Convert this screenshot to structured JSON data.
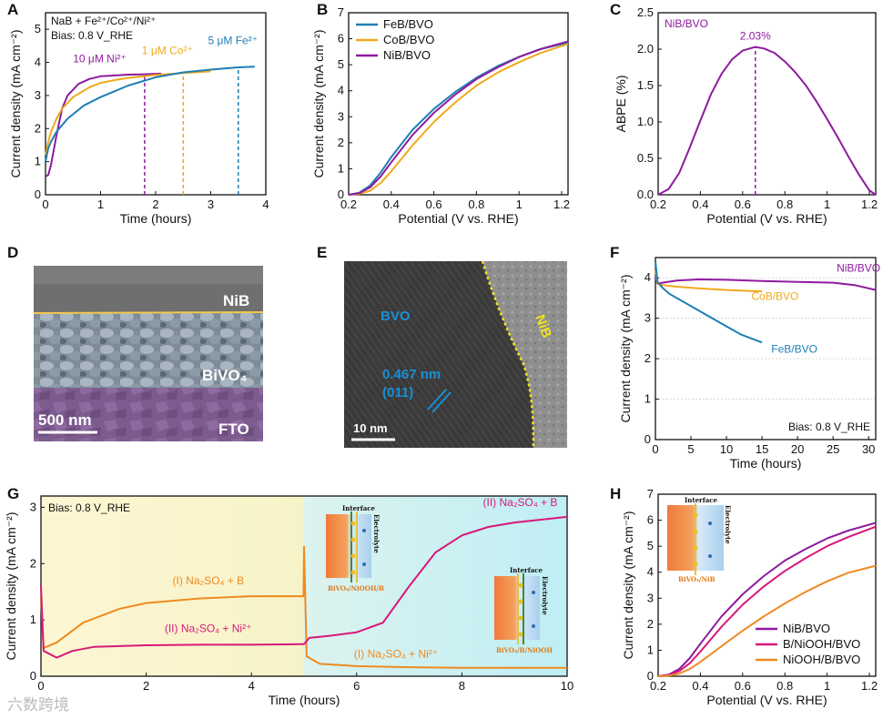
{
  "chart_data": [
    {
      "panel": "A",
      "type": "line",
      "xlabel": "Time (hours)",
      "ylabel": "Current density (mA cm⁻²)",
      "xlim": [
        0,
        4
      ],
      "ylim": [
        0,
        5.5
      ],
      "xticks": [
        0,
        1,
        2,
        3,
        4
      ],
      "yticks": [
        0,
        1,
        2,
        3,
        4,
        5
      ],
      "annotations": [
        "NaB + Fe²⁺/Co²⁺/Ni²⁺",
        "Bias: 0.8 V_RHE",
        "10 μM Ni²⁺",
        "1 μM Co²⁺",
        "5 μM Fe²⁺"
      ],
      "series": [
        {
          "name": "10 μM Ni²⁺",
          "color": "#8e1a9e",
          "x": [
            0,
            0.05,
            0.1,
            0.2,
            0.3,
            0.4,
            0.6,
            0.8,
            1.0,
            1.2,
            1.5,
            1.8,
            2.1
          ],
          "y": [
            0.55,
            0.6,
            0.9,
            1.8,
            2.6,
            3.0,
            3.35,
            3.5,
            3.58,
            3.6,
            3.63,
            3.64,
            3.66
          ],
          "marker_x": 1.8
        },
        {
          "name": "1 μM Co²⁺",
          "color": "#f0a91c",
          "x": [
            0,
            0.05,
            0.1,
            0.2,
            0.3,
            0.5,
            0.8,
            1.0,
            1.3,
            1.6,
            2.0,
            2.5,
            3.0
          ],
          "y": [
            1.2,
            1.6,
            1.9,
            2.3,
            2.6,
            2.95,
            3.25,
            3.38,
            3.48,
            3.55,
            3.62,
            3.68,
            3.73
          ],
          "marker_x": 2.5
        },
        {
          "name": "5 μM Fe²⁺",
          "color": "#1f7fb4",
          "x": [
            0,
            0.05,
            0.1,
            0.2,
            0.4,
            0.7,
            1.0,
            1.5,
            2.0,
            2.5,
            3.0,
            3.5,
            3.8
          ],
          "y": [
            1.0,
            1.4,
            1.6,
            1.9,
            2.3,
            2.7,
            2.95,
            3.3,
            3.55,
            3.7,
            3.78,
            3.85,
            3.87
          ],
          "marker_x": 3.5
        }
      ]
    },
    {
      "panel": "B",
      "type": "line",
      "xlabel": "Potential (V vs. RHE)",
      "ylabel": "Current density (mA cm⁻²)",
      "xlim": [
        0.2,
        1.23
      ],
      "ylim": [
        0,
        7
      ],
      "xticks": [
        0.2,
        0.4,
        0.6,
        0.8,
        1.0,
        1.2
      ],
      "yticks": [
        0,
        1,
        2,
        3,
        4,
        5,
        6,
        7
      ],
      "legend_position": "top-left",
      "series": [
        {
          "name": "FeB/BVO",
          "color": "#1f7fb4",
          "x": [
            0.2,
            0.25,
            0.3,
            0.35,
            0.4,
            0.5,
            0.6,
            0.7,
            0.8,
            0.9,
            1.0,
            1.1,
            1.23
          ],
          "y": [
            0,
            0.08,
            0.35,
            0.85,
            1.45,
            2.5,
            3.3,
            3.95,
            4.5,
            4.95,
            5.3,
            5.6,
            5.85
          ]
        },
        {
          "name": "CoB/BVO",
          "color": "#f0a91c",
          "x": [
            0.2,
            0.25,
            0.3,
            0.35,
            0.4,
            0.5,
            0.6,
            0.7,
            0.8,
            0.9,
            1.0,
            1.1,
            1.23
          ],
          "y": [
            0,
            0.03,
            0.15,
            0.45,
            0.9,
            1.9,
            2.8,
            3.55,
            4.2,
            4.7,
            5.1,
            5.45,
            5.8
          ]
        },
        {
          "name": "NiB/BVO",
          "color": "#8e1a9e",
          "x": [
            0.2,
            0.25,
            0.3,
            0.35,
            0.4,
            0.5,
            0.6,
            0.7,
            0.8,
            0.9,
            1.0,
            1.1,
            1.23
          ],
          "y": [
            0,
            0.06,
            0.28,
            0.7,
            1.25,
            2.3,
            3.15,
            3.85,
            4.45,
            4.9,
            5.3,
            5.6,
            5.9
          ]
        }
      ]
    },
    {
      "panel": "C",
      "type": "line",
      "xlabel": "Potential (V vs. RHE)",
      "ylabel": "ABPE (%)",
      "xlim": [
        0.2,
        1.23
      ],
      "ylim": [
        0,
        2.5
      ],
      "xticks": [
        0.2,
        0.4,
        0.6,
        0.8,
        1.0,
        1.2
      ],
      "yticks": [
        0.0,
        0.5,
        1.0,
        1.5,
        2.0,
        2.5
      ],
      "annotations": [
        "NiB/BVO",
        "2.03%"
      ],
      "series": [
        {
          "name": "NiB/BVO",
          "color": "#8e1a9e",
          "x": [
            0.2,
            0.25,
            0.3,
            0.35,
            0.4,
            0.45,
            0.5,
            0.55,
            0.6,
            0.66,
            0.7,
            0.75,
            0.8,
            0.85,
            0.9,
            0.95,
            1.0,
            1.05,
            1.1,
            1.15,
            1.2,
            1.23
          ],
          "y": [
            0,
            0.08,
            0.3,
            0.65,
            1.02,
            1.38,
            1.66,
            1.86,
            1.98,
            2.03,
            2.01,
            1.95,
            1.83,
            1.68,
            1.5,
            1.28,
            1.04,
            0.79,
            0.53,
            0.28,
            0.06,
            0
          ],
          "peak_x": 0.66
        }
      ]
    },
    {
      "panel": "F",
      "type": "line",
      "xlabel": "Time (hours)",
      "ylabel": "Current density (mA cm⁻²)",
      "xlim": [
        0,
        31
      ],
      "ylim": [
        0,
        4.5
      ],
      "xticks": [
        0,
        5,
        10,
        15,
        20,
        25,
        30
      ],
      "yticks": [
        0,
        1,
        2,
        3,
        4
      ],
      "grid": true,
      "annotations": [
        "Bias: 0.8 V_RHE"
      ],
      "series": [
        {
          "name": "NiB/BVO",
          "color": "#8e1a9e",
          "x": [
            0,
            0.3,
            1,
            3,
            6,
            10,
            15,
            20,
            25,
            28,
            31
          ],
          "y": [
            4.0,
            3.85,
            3.88,
            3.93,
            3.96,
            3.95,
            3.92,
            3.9,
            3.88,
            3.82,
            3.7
          ]
        },
        {
          "name": "CoB/BVO",
          "color": "#f0a91c",
          "x": [
            0,
            0.3,
            1,
            3,
            6,
            10,
            15
          ],
          "y": [
            4.2,
            3.85,
            3.82,
            3.78,
            3.74,
            3.7,
            3.66
          ]
        },
        {
          "name": "FeB/BVO",
          "color": "#1f7fb4",
          "x": [
            0,
            0.3,
            1,
            2,
            4,
            6,
            8,
            10,
            12,
            15
          ],
          "y": [
            4.4,
            3.9,
            3.75,
            3.6,
            3.4,
            3.2,
            3.0,
            2.8,
            2.6,
            2.4
          ]
        }
      ]
    },
    {
      "panel": "G",
      "type": "line",
      "xlabel": "Time (hours)",
      "ylabel": "Current density (mA cm⁻²)",
      "xlim": [
        0,
        10
      ],
      "ylim": [
        0,
        3.2
      ],
      "xticks": [
        0,
        2,
        4,
        6,
        8,
        10
      ],
      "yticks": [
        0,
        1,
        2,
        3
      ],
      "annotations": [
        "Bias: 0.8 V_RHE",
        "(I) Na₂SO₄ + B",
        "(II) Na₂SO₄ + Ni²⁺",
        "(II) Na₂SO₄ + B",
        "(I) Na₂SO₄ + Ni²⁺"
      ],
      "inset_labels": [
        "Interface",
        "Electrolyte",
        "BiVO₄/NiOOH/B",
        "BiVO₄/B/NiOOH"
      ],
      "series": [
        {
          "name": "(I) Na₂SO₄ + B",
          "color": "#ee8a1f",
          "x": [
            0,
            0.05,
            0.3,
            0.8,
            1.5,
            2.0,
            3.0,
            4.0,
            4.99,
            5.0,
            5.05,
            5.3,
            6.0,
            7.0,
            8.0,
            9.0,
            10.0
          ],
          "y": [
            1.4,
            0.5,
            0.6,
            0.95,
            1.2,
            1.3,
            1.38,
            1.42,
            1.42,
            2.3,
            0.35,
            0.22,
            0.18,
            0.16,
            0.15,
            0.15,
            0.15
          ]
        },
        {
          "name": "(II) Na₂SO₄ + Ni²⁺",
          "color": "#d7187a",
          "x": [
            0,
            0.05,
            0.3,
            0.6,
            1.0,
            2.0,
            3.0,
            4.0,
            4.99,
            5.0,
            5.1,
            5.5,
            6.0,
            6.5,
            7.0,
            7.5,
            8.0,
            8.5,
            9.0,
            9.5,
            10.0
          ],
          "y": [
            1.6,
            0.45,
            0.33,
            0.45,
            0.52,
            0.55,
            0.56,
            0.56,
            0.57,
            0.57,
            0.68,
            0.72,
            0.78,
            0.95,
            1.6,
            2.2,
            2.5,
            2.65,
            2.73,
            2.78,
            2.83
          ]
        }
      ]
    },
    {
      "panel": "H",
      "type": "line",
      "xlabel": "Potential (V vs. RHE)",
      "ylabel": "Current density (mA cm⁻²)",
      "xlim": [
        0.2,
        1.23
      ],
      "ylim": [
        0,
        7
      ],
      "xticks": [
        0.2,
        0.4,
        0.6,
        0.8,
        1.0,
        1.2
      ],
      "yticks": [
        0,
        1,
        2,
        3,
        4,
        5,
        6,
        7
      ],
      "legend_position": "bottom-right",
      "inset_labels": [
        "Interface",
        "Electrolyte",
        "BiVO₄/NiB"
      ],
      "series": [
        {
          "name": "NiB/BVO",
          "color": "#8e1a9e",
          "x": [
            0.2,
            0.25,
            0.3,
            0.35,
            0.4,
            0.5,
            0.6,
            0.7,
            0.8,
            0.9,
            1.0,
            1.1,
            1.23
          ],
          "y": [
            0,
            0.06,
            0.28,
            0.7,
            1.25,
            2.3,
            3.15,
            3.85,
            4.45,
            4.9,
            5.3,
            5.6,
            5.9
          ]
        },
        {
          "name": "B/NiOOH/BVO",
          "color": "#d7187a",
          "x": [
            0.2,
            0.25,
            0.3,
            0.35,
            0.4,
            0.5,
            0.6,
            0.7,
            0.8,
            0.9,
            1.0,
            1.1,
            1.23
          ],
          "y": [
            0,
            0.04,
            0.2,
            0.5,
            0.95,
            1.9,
            2.75,
            3.45,
            4.05,
            4.55,
            5.0,
            5.35,
            5.75
          ]
        },
        {
          "name": "NiOOH/B/BVO",
          "color": "#ee8a1f",
          "x": [
            0.2,
            0.25,
            0.3,
            0.35,
            0.4,
            0.5,
            0.6,
            0.7,
            0.8,
            0.9,
            1.0,
            1.1,
            1.23
          ],
          "y": [
            0,
            0.02,
            0.1,
            0.28,
            0.55,
            1.15,
            1.75,
            2.3,
            2.8,
            3.25,
            3.65,
            3.98,
            4.25
          ]
        }
      ]
    }
  ],
  "panels": {
    "a": "A",
    "b": "B",
    "c": "C",
    "d": "D",
    "e": "E",
    "f": "F",
    "g": "G",
    "h": "H"
  },
  "panel_d": {
    "layer_top": "NiB",
    "layer_mid": "BiVO₄",
    "layer_bottom": "FTO",
    "scale": "500 nm"
  },
  "panel_e": {
    "bvo": "BVO",
    "nib": "NiB",
    "spacing": "0.467 nm",
    "plane": "(011)",
    "scale": "10 nm"
  },
  "watermark": "六数跨境"
}
